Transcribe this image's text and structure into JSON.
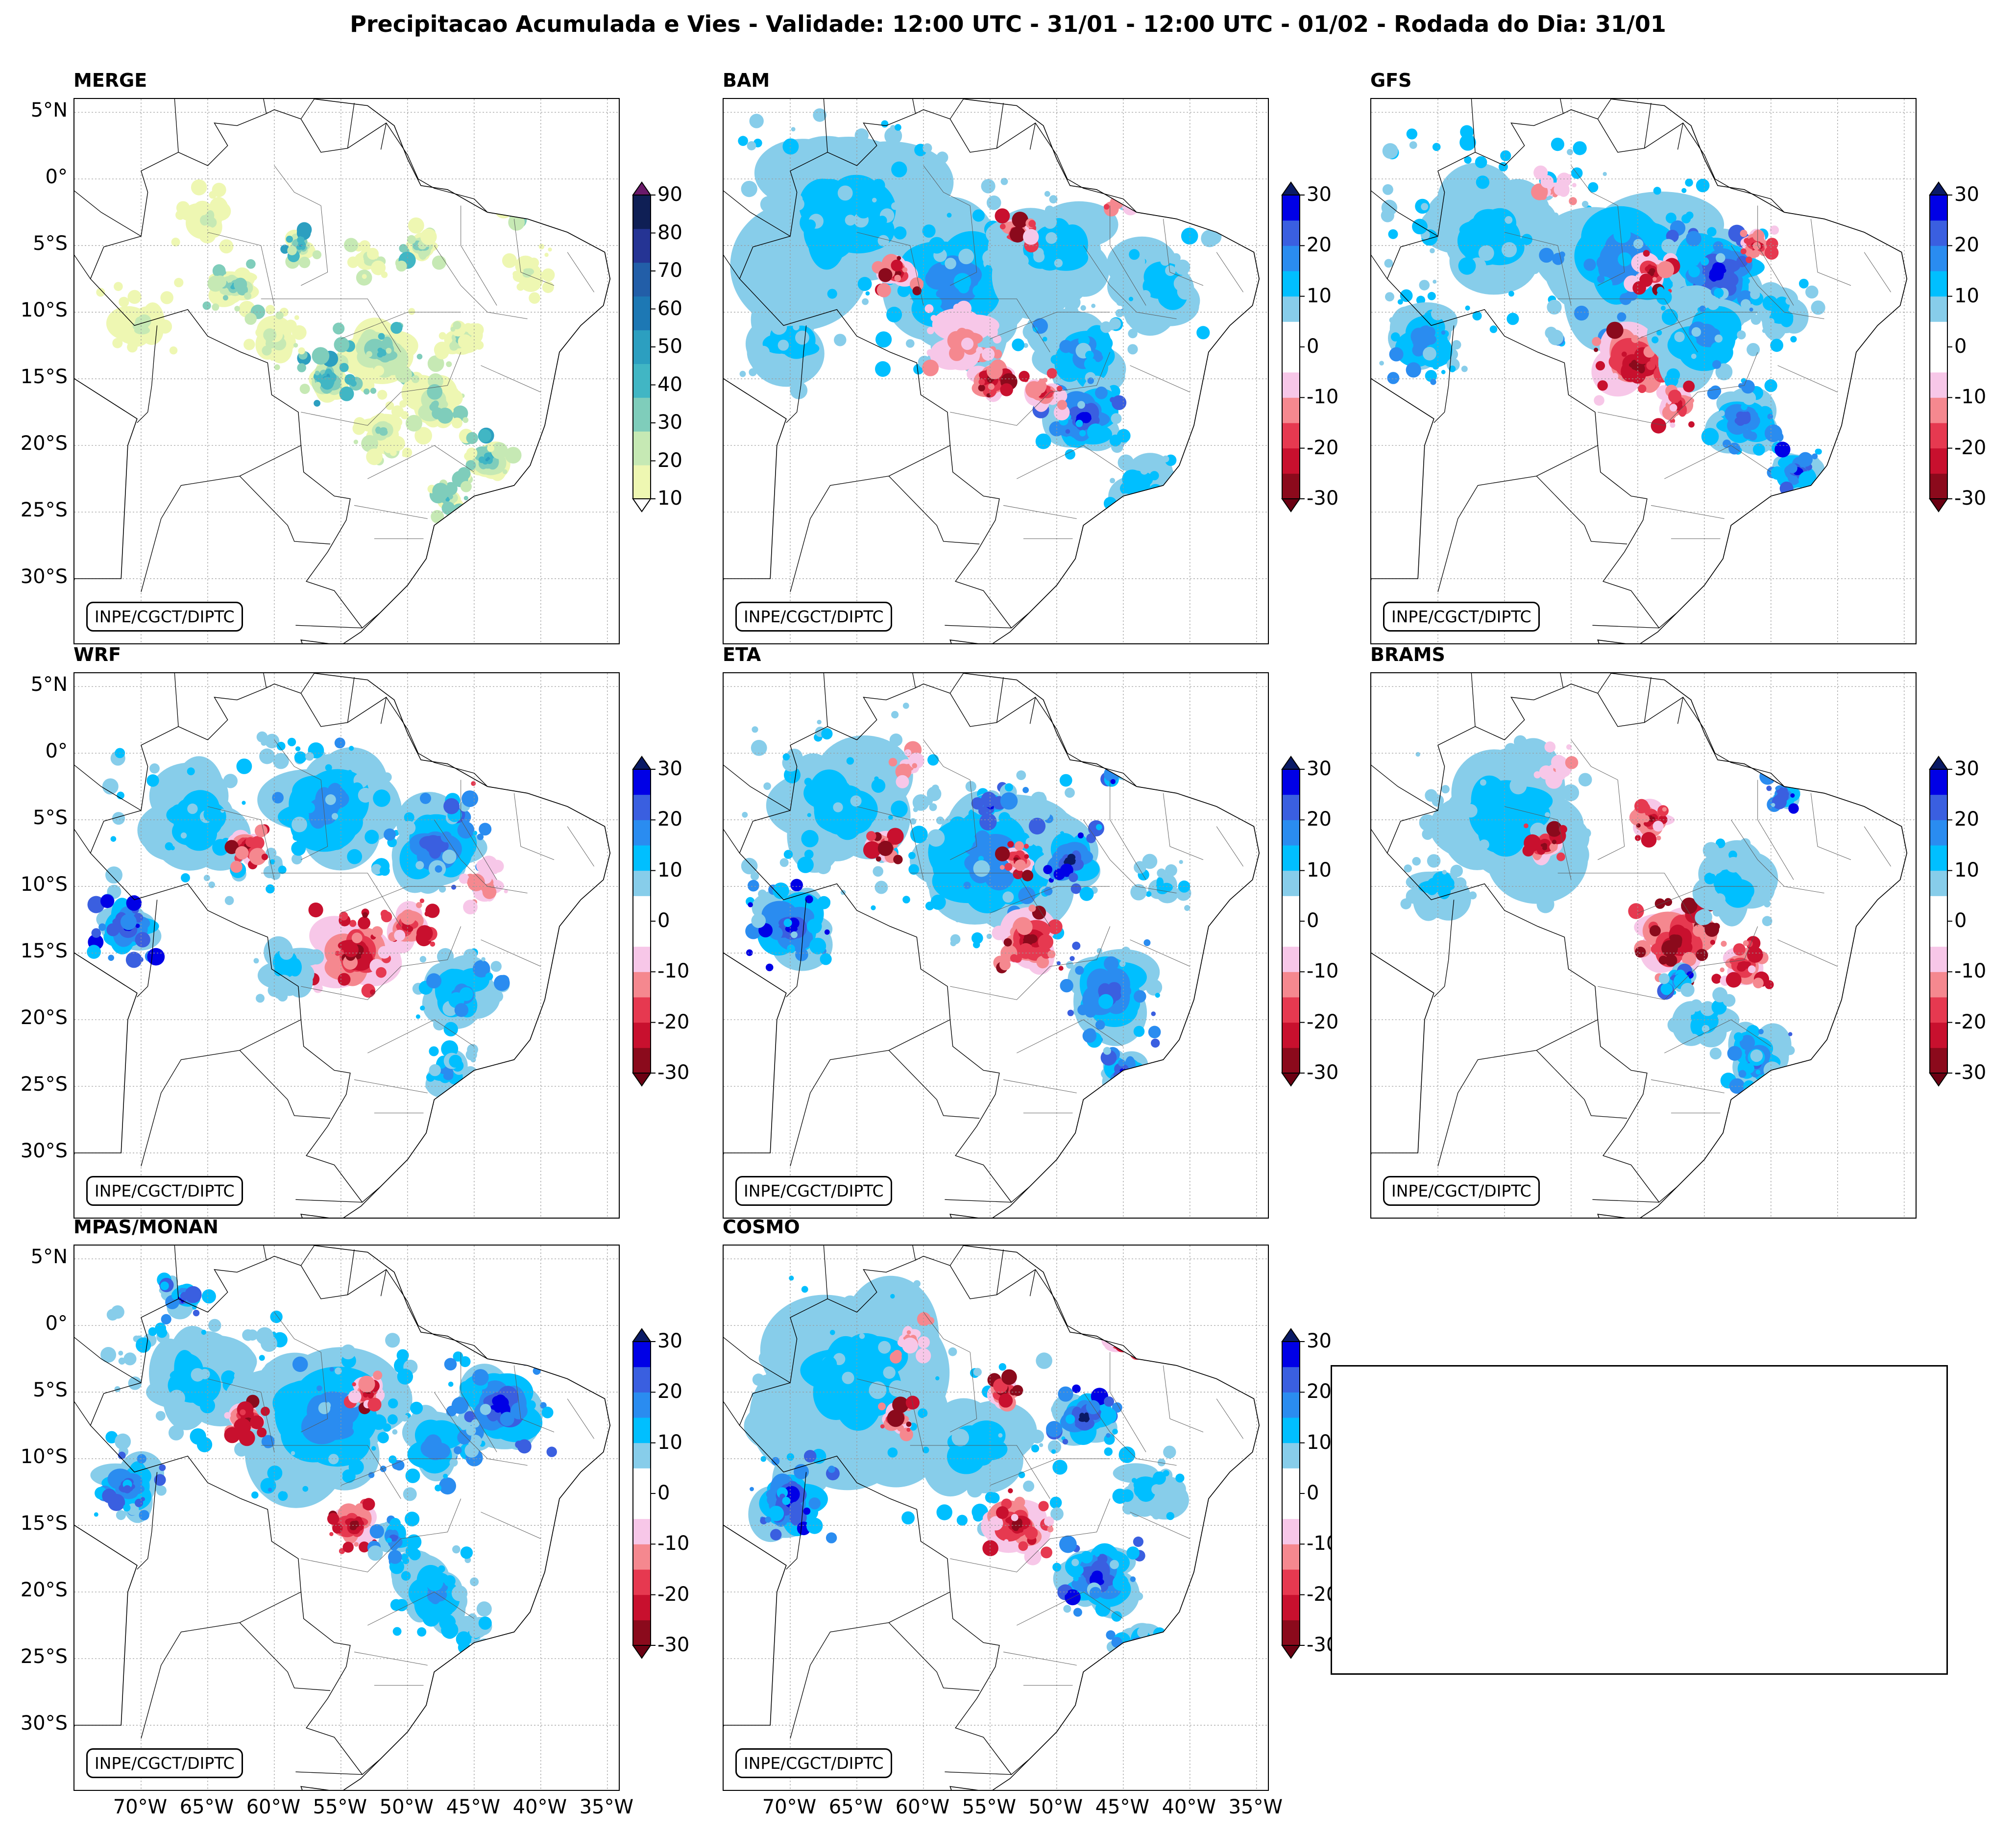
{
  "title": "Precipitacao Acumulada e Vies - Validade: 12:00 UTC - 31/01 - 12:00 UTC - 01/02 - Rodada do Dia: 31/01",
  "credit": "INPE/CGCT/DIPTC",
  "chart_data": {
    "type": "map-contourf",
    "extent": {
      "lon_min": -75,
      "lon_max": -34,
      "lat_min": -35,
      "lat_max": 6
    },
    "lat_ticks": [
      5,
      0,
      -5,
      -10,
      -15,
      -20,
      -25,
      -30
    ],
    "lat_tick_labels": [
      "5°N",
      "0°",
      "5°S",
      "10°S",
      "15°S",
      "20°S",
      "25°S",
      "30°S"
    ],
    "lon_ticks": [
      -70,
      -65,
      -60,
      -55,
      -50,
      -45,
      -40,
      -35
    ],
    "lon_tick_labels": [
      "70°W",
      "65°W",
      "60°W",
      "55°W",
      "50°W",
      "45°W",
      "40°W",
      "35°W"
    ],
    "colorbars": {
      "precip": {
        "levels": [
          10,
          20,
          30,
          40,
          50,
          60,
          70,
          80,
          90
        ],
        "tick_labels": [
          "10",
          "20",
          "30",
          "40",
          "50",
          "60",
          "70",
          "80",
          "90"
        ],
        "colors": [
          "#eef7b2",
          "#c6e9b4",
          "#7fcdbb",
          "#41b6c4",
          "#2c9fc0",
          "#1d78b4",
          "#225ea8",
          "#253494",
          "#0f1f55"
        ],
        "over_color": "#6a1a6a",
        "under_color": "#ffffff"
      },
      "bias": {
        "levels": [
          -30,
          -25,
          -20,
          -15,
          -10,
          -5,
          0,
          5,
          10,
          15,
          20,
          25,
          30
        ],
        "tick_labels": [
          "-30",
          "-20",
          "-10",
          "0",
          "10",
          "20",
          "30"
        ],
        "tick_values": [
          -30,
          -20,
          -10,
          0,
          10,
          20,
          30
        ],
        "colors": [
          "#8b0a1c",
          "#c8102e",
          "#e63950",
          "#f5888f",
          "#f7c7e8",
          "#ffffff",
          "#ffffff",
          "#87cdea",
          "#00bfff",
          "#2a8cf0",
          "#3a5fe0",
          "#0000e6"
        ],
        "over_color": "#0a1a66",
        "under_color": "#6b0012"
      }
    },
    "panels": [
      {
        "name": "MERGE",
        "colorbar": "precip",
        "blobs": [
          [
            -63,
            -8,
            1.6,
            40
          ],
          [
            -58,
            -5,
            1.0,
            55
          ],
          [
            -52,
            -13,
            2.5,
            45
          ],
          [
            -56,
            -15,
            1.5,
            60
          ],
          [
            -48,
            -17,
            2.0,
            35
          ],
          [
            -46,
            -12,
            1.5,
            30
          ],
          [
            -44,
            -21,
            1.5,
            55
          ],
          [
            -49,
            -5,
            1.2,
            45
          ],
          [
            -43,
            -2,
            1.0,
            50
          ],
          [
            -60,
            -12,
            1.8,
            25
          ],
          [
            -70,
            -11,
            2.5,
            20
          ],
          [
            -65,
            -3,
            2.0,
            20
          ],
          [
            -53,
            -6,
            1.2,
            25
          ],
          [
            -41,
            -7,
            1.5,
            20
          ],
          [
            -52,
            -19,
            1.8,
            30
          ],
          [
            -47,
            -24,
            1.2,
            40
          ]
        ]
      },
      {
        "name": "BAM",
        "colorbar": "bias",
        "blobs": [
          [
            -66,
            -3,
            6,
            12
          ],
          [
            -58,
            -8,
            5,
            15
          ],
          [
            -50,
            -5,
            4,
            10
          ],
          [
            -62,
            -7,
            1.2,
            -28
          ],
          [
            -53,
            -4,
            1.0,
            -30
          ],
          [
            -48,
            -13,
            3,
            18
          ],
          [
            -48,
            -18,
            2.5,
            25
          ],
          [
            -55,
            -15,
            1.5,
            -30
          ],
          [
            -51,
            -16,
            1.2,
            -22
          ],
          [
            -45,
            -1,
            1.0,
            -20
          ],
          [
            -42,
            -8,
            3,
            12
          ],
          [
            -70,
            -12,
            3,
            10
          ],
          [
            -44,
            -23,
            2.0,
            12
          ],
          [
            -57,
            -12,
            2.0,
            -12
          ]
        ]
      },
      {
        "name": "GFS",
        "colorbar": "bias",
        "blobs": [
          [
            -66,
            -4,
            6,
            14
          ],
          [
            -56,
            -6,
            5,
            18
          ],
          [
            -49,
            -7,
            3,
            25
          ],
          [
            -54,
            -7,
            1.2,
            -30
          ],
          [
            -46,
            -5,
            1.0,
            -26
          ],
          [
            -55,
            -14,
            2.5,
            -30
          ],
          [
            -50,
            -12,
            3,
            16
          ],
          [
            -47,
            -18,
            2.0,
            20
          ],
          [
            -43,
            -22,
            1.5,
            28
          ],
          [
            -61,
            -1,
            1.2,
            -14
          ],
          [
            -71,
            -12,
            2.5,
            18
          ],
          [
            -52,
            -17,
            1.2,
            -22
          ],
          [
            -44,
            -10,
            2.0,
            12
          ]
        ]
      },
      {
        "name": "WRF",
        "colorbar": "bias",
        "blobs": [
          [
            -66,
            -5,
            5,
            14
          ],
          [
            -56,
            -4,
            4,
            16
          ],
          [
            -48,
            -7,
            3,
            22
          ],
          [
            -62,
            -7,
            1.2,
            -30
          ],
          [
            -54,
            -15,
            2.5,
            -28
          ],
          [
            -50,
            -13,
            1.5,
            -24
          ],
          [
            -71,
            -13,
            2.0,
            28
          ],
          [
            -46,
            -18,
            2.5,
            18
          ],
          [
            -44,
            -1,
            1.0,
            -20
          ],
          [
            -47,
            -24,
            1.5,
            15
          ],
          [
            -59,
            -16,
            2.0,
            10
          ],
          [
            -44,
            -10,
            1.5,
            -14
          ]
        ]
      },
      {
        "name": "ETA",
        "colorbar": "bias",
        "blobs": [
          [
            -66,
            -4,
            6,
            14
          ],
          [
            -55,
            -8,
            5,
            16
          ],
          [
            -70,
            -13,
            2.5,
            28
          ],
          [
            -49,
            -8,
            2.0,
            30
          ],
          [
            -55,
            -4,
            1.2,
            26
          ],
          [
            -63,
            -7,
            1.0,
            -30
          ],
          [
            -53,
            -8,
            1.0,
            -28
          ],
          [
            -52,
            -14,
            2.0,
            -26
          ],
          [
            -46,
            -18,
            3,
            22
          ],
          [
            -45,
            -24,
            1.5,
            26
          ],
          [
            -45,
            -1,
            1.0,
            30
          ],
          [
            -42,
            -10,
            1.5,
            14
          ],
          [
            -61,
            -1,
            1.0,
            -14
          ]
        ]
      },
      {
        "name": "BRAMS",
        "colorbar": "bias",
        "blobs": [
          [
            -65,
            -5,
            5,
            10
          ],
          [
            -52,
            -14,
            2.5,
            -30
          ],
          [
            -62,
            -7,
            1.2,
            -28
          ],
          [
            -54,
            -5,
            1.2,
            -26
          ],
          [
            -48,
            -10,
            2.5,
            12
          ],
          [
            -52,
            -17,
            1.0,
            30
          ],
          [
            -46,
            -23,
            2.0,
            22
          ],
          [
            -44,
            -3,
            1.0,
            26
          ],
          [
            -47,
            -16,
            1.5,
            -24
          ],
          [
            -61,
            -1,
            1.2,
            -14
          ],
          [
            -50,
            -20,
            2.0,
            12
          ],
          [
            -70,
            -10,
            2.0,
            10
          ]
        ]
      },
      {
        "name": "MPAS/MONAN",
        "colorbar": "bias",
        "blobs": [
          [
            -66,
            -4,
            5,
            14
          ],
          [
            -56,
            -7,
            5,
            16
          ],
          [
            -43,
            -6,
            3,
            26
          ],
          [
            -48,
            -9,
            2.5,
            18
          ],
          [
            -62,
            -7,
            1.2,
            -30
          ],
          [
            -53,
            -5,
            1.0,
            -26
          ],
          [
            -54,
            -15,
            1.5,
            -30
          ],
          [
            -71,
            -12,
            2.0,
            24
          ],
          [
            -48,
            -20,
            2.5,
            16
          ],
          [
            -51,
            -16,
            1.2,
            20
          ],
          [
            -45,
            -23,
            1.5,
            14
          ],
          [
            -67,
            2,
            1.2,
            26
          ]
        ]
      },
      {
        "name": "COSMO",
        "colorbar": "bias",
        "blobs": [
          [
            -65,
            -4,
            6,
            12
          ],
          [
            -56,
            -9,
            5,
            14
          ],
          [
            -48,
            -7,
            2.0,
            30
          ],
          [
            -70,
            -13,
            2.5,
            28
          ],
          [
            -62,
            -7,
            1.0,
            -28
          ],
          [
            -54,
            -5,
            1.0,
            -30
          ],
          [
            -53,
            -15,
            2.0,
            -26
          ],
          [
            -47,
            -19,
            2.5,
            26
          ],
          [
            -44,
            -24,
            1.5,
            20
          ],
          [
            -45,
            -1,
            1.0,
            -22
          ],
          [
            -61,
            -1,
            1.2,
            -14
          ],
          [
            -43,
            -12,
            2.0,
            12
          ]
        ]
      }
    ]
  }
}
